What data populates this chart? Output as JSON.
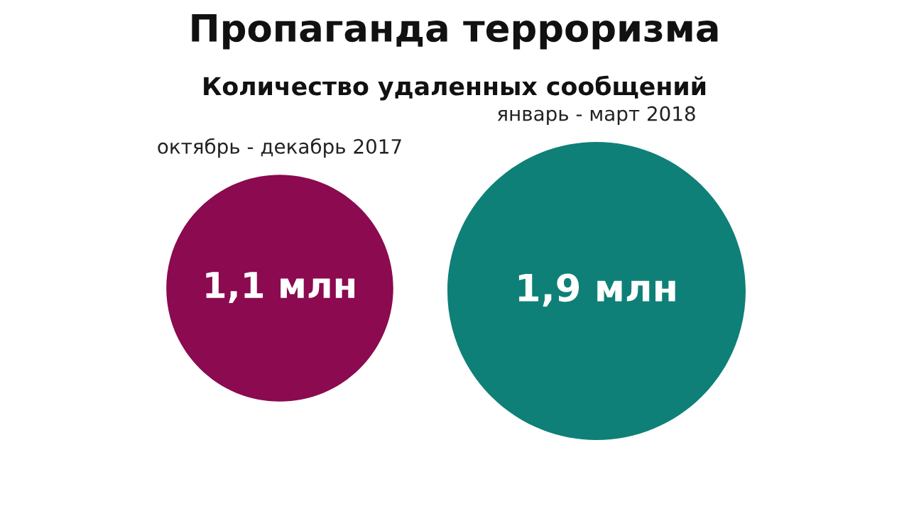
{
  "chart_data": {
    "type": "other",
    "title": "Пропаганда терроризма",
    "subtitle": "Количество удаленных сообщений",
    "categories": [
      "октябрь - декабрь 2017",
      "январь - март 2018"
    ],
    "values": [
      1.1,
      1.9
    ],
    "value_labels": [
      "1,1 млн",
      "1,9 млн"
    ],
    "colors": [
      "#8b0a50",
      "#0e8077"
    ]
  }
}
